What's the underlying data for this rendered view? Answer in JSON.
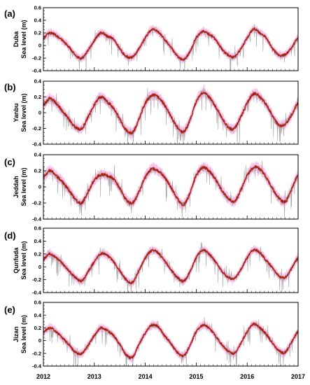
{
  "chart_data": [
    {
      "type": "line",
      "panel_label": "(a)",
      "station": "Duba",
      "ylabel": "Sea level (m)",
      "ylim": [
        -0.4,
        0.6
      ],
      "yticks": [
        "0.6",
        "0.4",
        "0.2",
        "0",
        "-0.2",
        "-0.4"
      ],
      "xlim": [
        2012,
        2017
      ],
      "xticks": [
        "2012",
        "2013",
        "2014",
        "2015",
        "2016",
        "2017"
      ],
      "series": [
        {
          "role": "observed",
          "color": "#a6a6a6",
          "opacity": 1.0
        },
        {
          "role": "envelope",
          "color": "#f4b6e6",
          "opacity": 0.85
        },
        {
          "role": "model",
          "color": "#c0281c",
          "opacity": 1.0
        },
        {
          "role": "model-inner",
          "color": "#7a1a10",
          "opacity": 0.6
        }
      ],
      "x": [
        2012.0,
        2012.125,
        2012.25,
        2012.375,
        2012.5,
        2012.625,
        2012.75,
        2012.875,
        2013.0,
        2013.125,
        2013.25,
        2013.375,
        2013.5,
        2013.625,
        2013.75,
        2013.875,
        2014.0,
        2014.125,
        2014.25,
        2014.375,
        2014.5,
        2014.625,
        2014.75,
        2014.875,
        2015.0,
        2015.125,
        2015.25,
        2015.375,
        2015.5,
        2015.625,
        2015.75,
        2015.875,
        2016.0,
        2016.125,
        2016.25,
        2016.375,
        2016.5,
        2016.625,
        2016.75,
        2016.875,
        2017.0
      ],
      "values": [
        0.12,
        0.2,
        0.16,
        0.08,
        -0.02,
        -0.15,
        -0.2,
        -0.08,
        0.08,
        0.2,
        0.15,
        0.1,
        -0.05,
        -0.17,
        -0.18,
        -0.05,
        0.12,
        0.25,
        0.22,
        0.1,
        -0.02,
        -0.16,
        -0.22,
        -0.1,
        0.12,
        0.22,
        0.18,
        0.1,
        -0.05,
        -0.15,
        -0.18,
        -0.05,
        0.12,
        0.26,
        0.2,
        0.12,
        -0.05,
        -0.15,
        -0.14,
        -0.03,
        0.12
      ]
    },
    {
      "type": "line",
      "panel_label": "(b)",
      "station": "Yanbu",
      "ylabel": "Sea level (m)",
      "ylim": [
        -0.4,
        0.4
      ],
      "yticks": [
        "0.4",
        "0.2",
        "0",
        "-0.2",
        "-0.4"
      ],
      "xlim": [
        2012,
        2017
      ],
      "xticks": [
        "2012",
        "2013",
        "2014",
        "2015",
        "2016",
        "2017"
      ],
      "series": [
        {
          "role": "observed",
          "color": "#a6a6a6",
          "opacity": 1.0
        },
        {
          "role": "envelope",
          "color": "#f4b6e6",
          "opacity": 0.85
        },
        {
          "role": "model",
          "color": "#c0281c",
          "opacity": 1.0
        },
        {
          "role": "model-inner",
          "color": "#7a1a10",
          "opacity": 0.6
        }
      ],
      "x": [
        2012.0,
        2012.125,
        2012.25,
        2012.375,
        2012.5,
        2012.625,
        2012.75,
        2012.875,
        2013.0,
        2013.125,
        2013.25,
        2013.375,
        2013.5,
        2013.625,
        2013.75,
        2013.875,
        2014.0,
        2014.125,
        2014.25,
        2014.375,
        2014.5,
        2014.625,
        2014.75,
        2014.875,
        2015.0,
        2015.125,
        2015.25,
        2015.375,
        2015.5,
        2015.625,
        2015.75,
        2015.875,
        2016.0,
        2016.125,
        2016.25,
        2016.375,
        2016.5,
        2016.625,
        2016.75,
        2016.875,
        2017.0
      ],
      "values": [
        0.1,
        0.18,
        0.12,
        0.02,
        -0.08,
        -0.18,
        -0.2,
        -0.06,
        0.1,
        0.2,
        0.14,
        0.06,
        -0.08,
        -0.22,
        -0.25,
        -0.08,
        0.12,
        0.22,
        0.2,
        0.1,
        -0.04,
        -0.18,
        -0.24,
        -0.1,
        0.14,
        0.25,
        0.2,
        0.08,
        -0.06,
        -0.18,
        -0.2,
        -0.05,
        0.12,
        0.24,
        0.2,
        0.1,
        -0.04,
        -0.16,
        -0.14,
        -0.02,
        0.12
      ]
    },
    {
      "type": "line",
      "panel_label": "(c)",
      "station": "Jeddah",
      "ylabel": "Sea level (m)",
      "ylim": [
        -0.4,
        0.4
      ],
      "yticks": [
        "0.4",
        "0.2",
        "0",
        "-0.2",
        "-0.4"
      ],
      "xlim": [
        2012,
        2017
      ],
      "xticks": [
        "2012",
        "2013",
        "2014",
        "2015",
        "2016",
        "2017"
      ],
      "series": [
        {
          "role": "observed",
          "color": "#a6a6a6",
          "opacity": 1.0
        },
        {
          "role": "envelope",
          "color": "#f4b6e6",
          "opacity": 0.85
        },
        {
          "role": "model",
          "color": "#c0281c",
          "opacity": 1.0
        },
        {
          "role": "model-inner",
          "color": "#7a1a10",
          "opacity": 0.6
        }
      ],
      "x": [
        2012.0,
        2012.125,
        2012.25,
        2012.375,
        2012.5,
        2012.625,
        2012.75,
        2012.875,
        2013.0,
        2013.125,
        2013.25,
        2013.375,
        2013.5,
        2013.625,
        2013.75,
        2013.875,
        2014.0,
        2014.125,
        2014.25,
        2014.375,
        2014.5,
        2014.625,
        2014.75,
        2014.875,
        2015.0,
        2015.125,
        2015.25,
        2015.375,
        2015.5,
        2015.625,
        2015.75,
        2015.875,
        2016.0,
        2016.125,
        2016.25,
        2016.375,
        2016.5,
        2016.625,
        2016.75,
        2016.875,
        2017.0
      ],
      "values": [
        0.12,
        0.2,
        0.14,
        0.06,
        -0.04,
        -0.15,
        -0.2,
        -0.06,
        0.08,
        0.15,
        0.14,
        0.1,
        -0.02,
        -0.16,
        -0.2,
        -0.06,
        0.12,
        0.22,
        0.2,
        0.12,
        0.0,
        -0.14,
        -0.22,
        -0.08,
        0.14,
        0.24,
        0.2,
        0.1,
        -0.04,
        -0.14,
        -0.18,
        -0.04,
        0.14,
        0.24,
        0.22,
        0.12,
        -0.02,
        -0.14,
        -0.18,
        -0.02,
        0.14
      ]
    },
    {
      "type": "line",
      "panel_label": "(d)",
      "station": "Qunfuda",
      "ylabel": "Sea level (m)",
      "ylim": [
        -0.4,
        0.6
      ],
      "yticks": [
        "0.6",
        "0.4",
        "0.2",
        "0",
        "-0.2",
        "-0.4"
      ],
      "xlim": [
        2012,
        2017
      ],
      "xticks": [
        "2012",
        "2013",
        "2014",
        "2015",
        "2016",
        "2017"
      ],
      "series": [
        {
          "role": "observed",
          "color": "#a6a6a6",
          "opacity": 1.0
        },
        {
          "role": "envelope",
          "color": "#f4b6e6",
          "opacity": 0.85
        },
        {
          "role": "model",
          "color": "#c0281c",
          "opacity": 1.0
        },
        {
          "role": "model-inner",
          "color": "#7a1a10",
          "opacity": 0.6
        }
      ],
      "x": [
        2012.0,
        2012.125,
        2012.25,
        2012.375,
        2012.5,
        2012.625,
        2012.75,
        2012.875,
        2013.0,
        2013.125,
        2013.25,
        2013.375,
        2013.5,
        2013.625,
        2013.75,
        2013.875,
        2014.0,
        2014.125,
        2014.25,
        2014.375,
        2014.5,
        2014.625,
        2014.75,
        2014.875,
        2015.0,
        2015.125,
        2015.25,
        2015.375,
        2015.5,
        2015.625,
        2015.75,
        2015.875,
        2016.0,
        2016.125,
        2016.25,
        2016.375,
        2016.5,
        2016.625,
        2016.75,
        2016.875,
        2017.0
      ],
      "values": [
        0.12,
        0.2,
        0.14,
        0.05,
        -0.06,
        -0.16,
        -0.22,
        -0.08,
        0.08,
        0.2,
        0.18,
        0.08,
        -0.06,
        -0.2,
        -0.24,
        -0.06,
        0.14,
        0.25,
        0.22,
        0.1,
        -0.04,
        -0.16,
        -0.22,
        -0.08,
        0.14,
        0.26,
        0.2,
        0.08,
        -0.06,
        -0.16,
        -0.18,
        -0.04,
        0.14,
        0.26,
        0.22,
        0.1,
        -0.02,
        -0.14,
        -0.16,
        -0.02,
        0.14
      ]
    },
    {
      "type": "line",
      "panel_label": "(e)",
      "station": "Jizan",
      "ylabel": "Sea level (m)",
      "ylim": [
        -0.4,
        0.6
      ],
      "yticks": [
        "0.6",
        "0.4",
        "0.2",
        "0",
        "-0.2",
        "-0.4"
      ],
      "xlim": [
        2012,
        2017
      ],
      "xticks": [
        "2012",
        "2013",
        "2014",
        "2015",
        "2016",
        "2017"
      ],
      "series": [
        {
          "role": "observed",
          "color": "#a6a6a6",
          "opacity": 1.0
        },
        {
          "role": "envelope",
          "color": "#f4b6e6",
          "opacity": 0.85
        },
        {
          "role": "model",
          "color": "#c0281c",
          "opacity": 1.0
        },
        {
          "role": "model-inner",
          "color": "#7a1a10",
          "opacity": 0.6
        }
      ],
      "x": [
        2012.0,
        2012.125,
        2012.25,
        2012.375,
        2012.5,
        2012.625,
        2012.75,
        2012.875,
        2013.0,
        2013.125,
        2013.25,
        2013.375,
        2013.5,
        2013.625,
        2013.75,
        2013.875,
        2014.0,
        2014.125,
        2014.25,
        2014.375,
        2014.5,
        2014.625,
        2014.75,
        2014.875,
        2015.0,
        2015.125,
        2015.25,
        2015.375,
        2015.5,
        2015.625,
        2015.75,
        2015.875,
        2016.0,
        2016.125,
        2016.25,
        2016.375,
        2016.5,
        2016.625,
        2016.75,
        2016.875,
        2017.0
      ],
      "values": [
        0.14,
        0.2,
        0.14,
        0.04,
        -0.06,
        -0.18,
        -0.2,
        -0.08,
        0.08,
        0.2,
        0.16,
        0.08,
        -0.06,
        -0.22,
        -0.26,
        -0.06,
        0.12,
        0.24,
        0.22,
        0.08,
        -0.04,
        -0.18,
        -0.24,
        -0.08,
        0.14,
        0.24,
        0.2,
        0.08,
        -0.06,
        -0.16,
        -0.2,
        -0.04,
        0.14,
        0.26,
        0.2,
        0.1,
        -0.04,
        -0.16,
        -0.18,
        -0.02,
        0.14
      ]
    }
  ]
}
